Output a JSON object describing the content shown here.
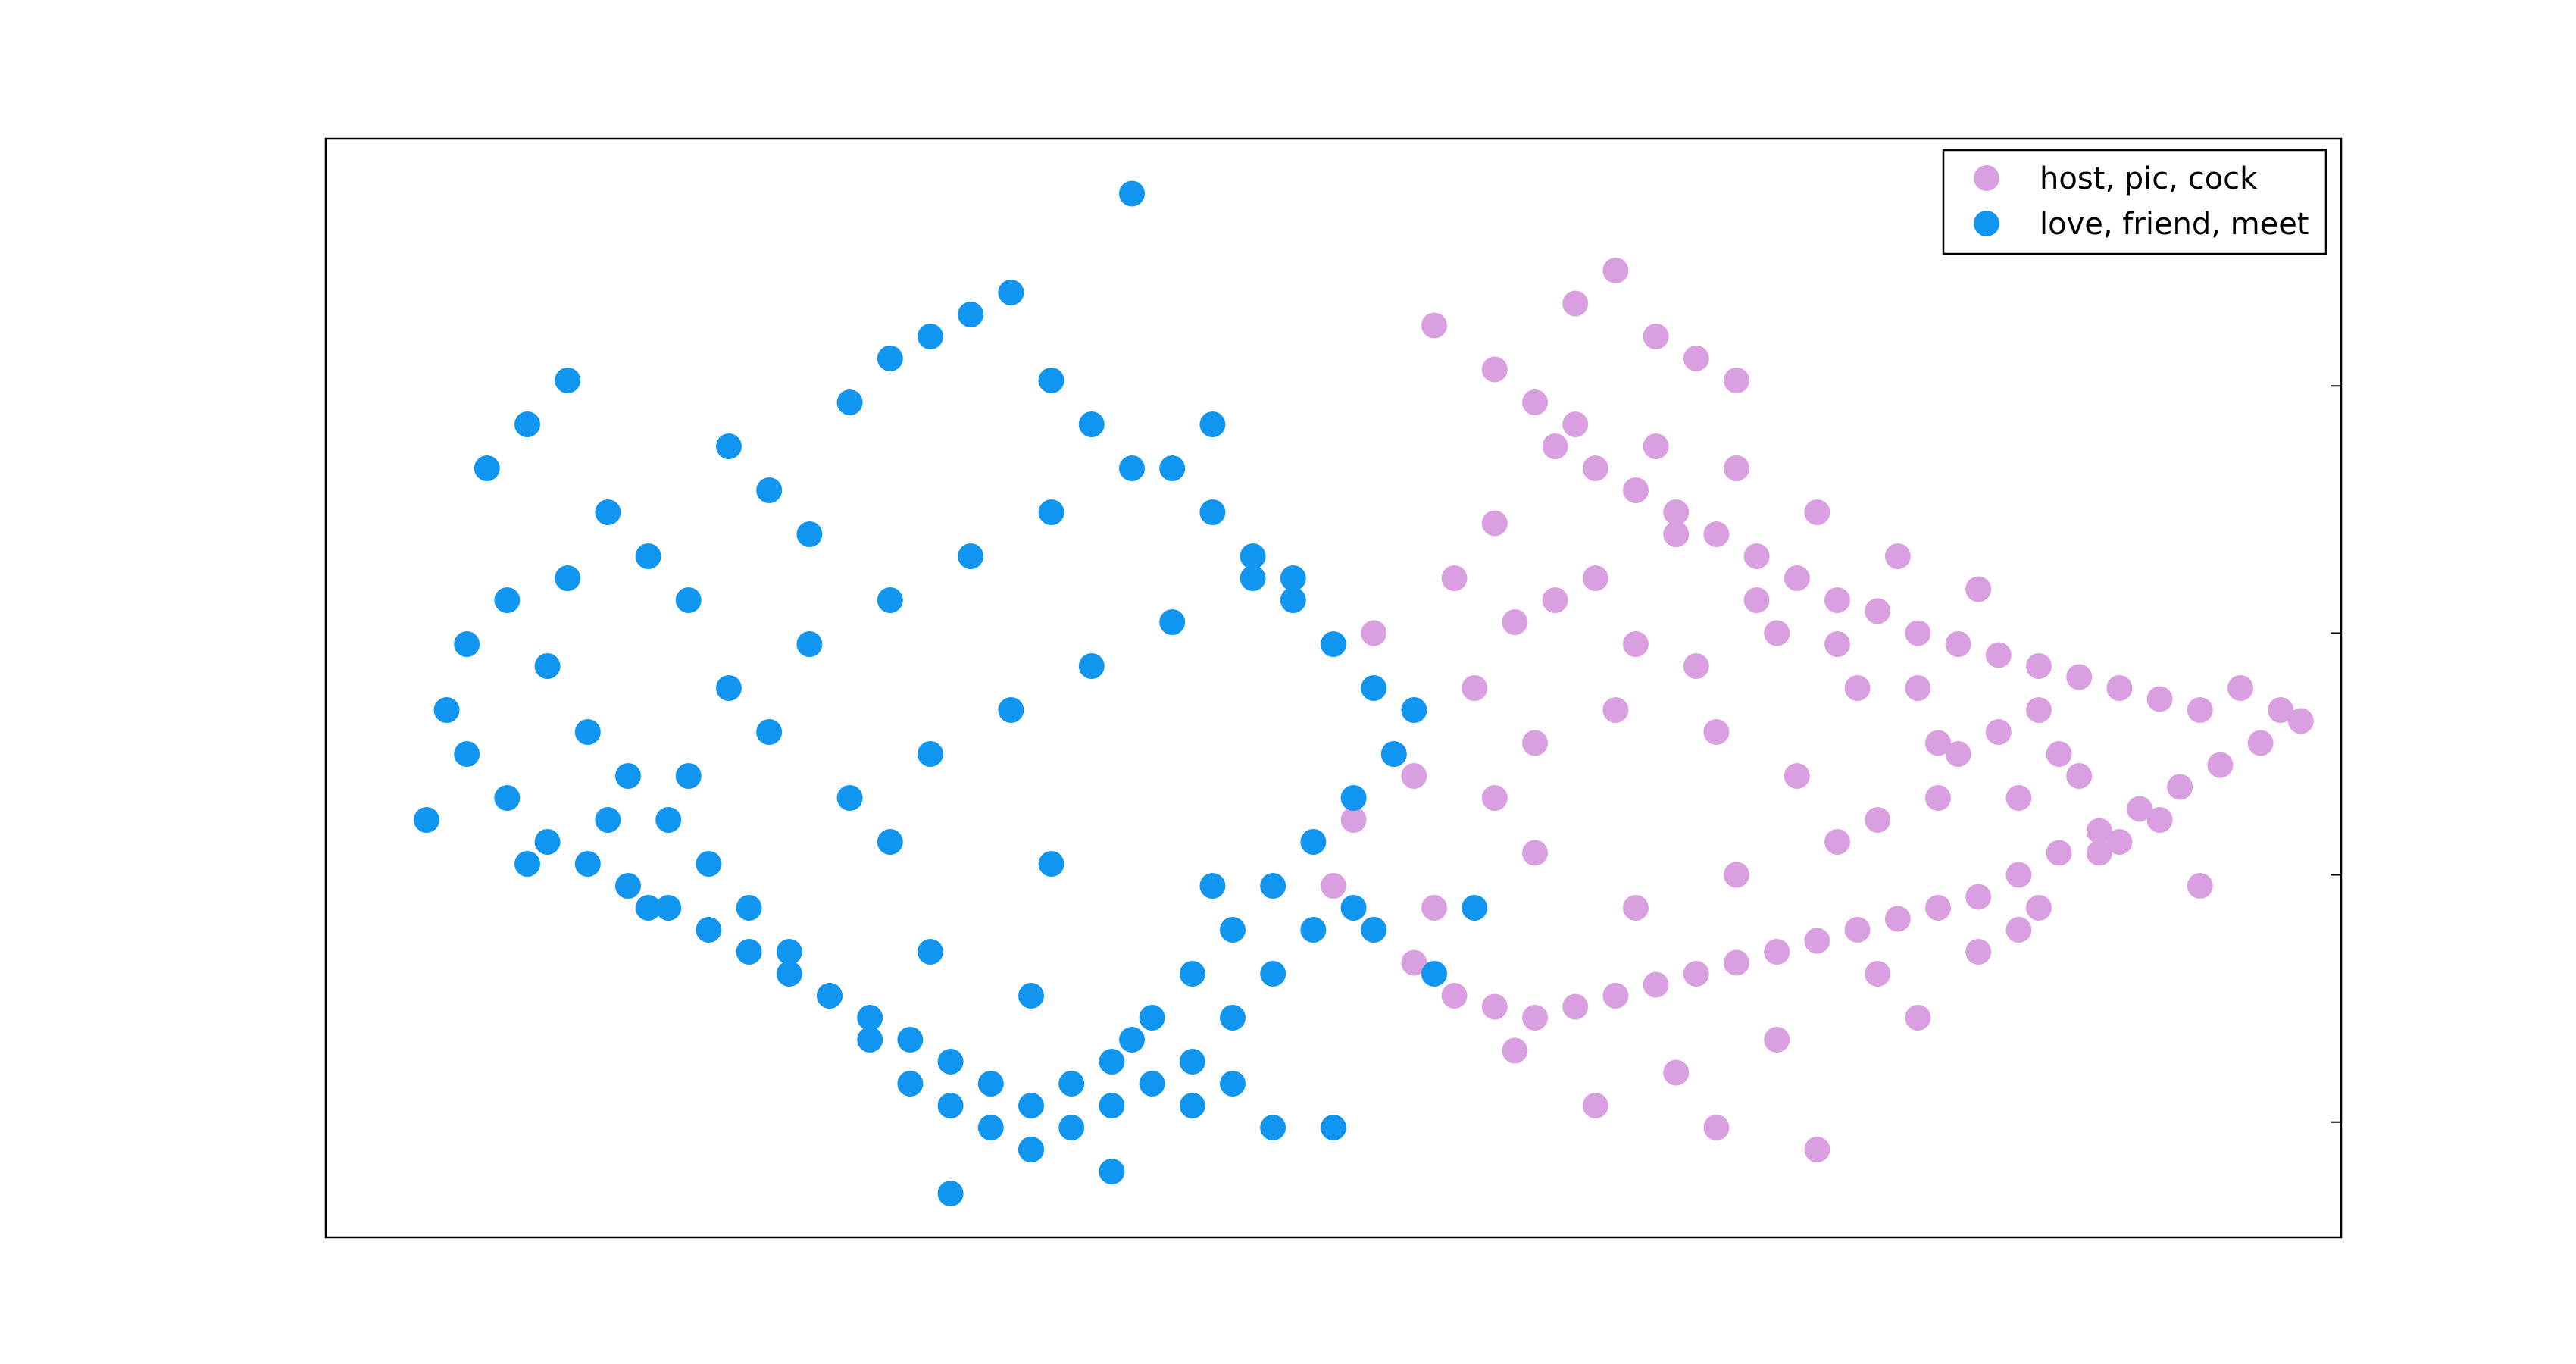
{
  "chart_data": {
    "type": "scatter",
    "title": "",
    "xlabel": "",
    "ylabel": "",
    "xlim": [
      0,
      100
    ],
    "ylim": [
      0,
      100
    ],
    "grid": false,
    "axes_visible_tick_labels": false,
    "legend": {
      "placement": "top-right",
      "entries": [
        "host, pic, cock",
        "love, friend, meet"
      ]
    },
    "series": [
      {
        "name": "host, pic, cock",
        "color": "#da9fe0",
        "x": [
          62,
          64,
          66,
          68,
          70,
          55,
          58,
          60,
          61,
          63,
          65,
          67,
          69,
          71,
          73,
          75,
          77,
          79,
          81,
          83,
          85,
          87,
          89,
          91,
          93,
          95,
          97,
          98,
          96,
          94,
          92,
          90,
          88,
          86,
          84,
          82,
          80,
          78,
          76,
          74,
          72,
          70,
          68,
          66,
          64,
          62,
          60,
          58,
          56,
          54,
          52,
          50,
          51,
          53,
          57,
          59,
          63,
          67,
          71,
          75,
          79,
          83,
          87,
          91,
          58,
          60,
          64,
          68,
          72,
          76,
          80,
          84,
          88,
          52,
          56,
          61,
          65,
          69,
          73,
          77,
          81,
          85,
          89,
          93,
          74,
          78,
          82,
          86,
          70,
          66,
          62,
          58,
          54,
          60,
          65,
          70,
          75,
          80,
          85,
          72,
          77,
          82,
          67,
          63,
          59,
          55,
          69,
          74,
          79,
          84
        ],
        "y": [
          85,
          88,
          82,
          80,
          78,
          83,
          79,
          76,
          72,
          70,
          68,
          66,
          64,
          62,
          60,
          58,
          57,
          55,
          54,
          53,
          52,
          51,
          50,
          49,
          48,
          50,
          48,
          47,
          45,
          43,
          41,
          39,
          37,
          35,
          33,
          31,
          30,
          29,
          28,
          27,
          26,
          25,
          24,
          23,
          22,
          21,
          20,
          21,
          22,
          25,
          28,
          32,
          38,
          44,
          50,
          56,
          60,
          64,
          58,
          54,
          50,
          46,
          42,
          38,
          40,
          45,
          48,
          52,
          55,
          50,
          45,
          40,
          35,
          55,
          60,
          58,
          54,
          46,
          42,
          38,
          44,
          48,
          36,
          32,
          66,
          62,
          59,
          44,
          70,
          72,
          74,
          65,
          42,
          35,
          30,
          33,
          36,
          40,
          30,
          18,
          24,
          26,
          15,
          12,
          17,
          30,
          10,
          8,
          20,
          28
        ]
      },
      {
        "name": "love, friend, meet",
        "color": "#1095f0",
        "x": [
          40,
          8,
          10,
          12,
          14,
          16,
          18,
          20,
          22,
          24,
          26,
          28,
          30,
          32,
          34,
          36,
          38,
          42,
          44,
          46,
          48,
          50,
          52,
          54,
          53,
          51,
          49,
          47,
          45,
          43,
          41,
          39,
          37,
          35,
          33,
          31,
          29,
          27,
          25,
          23,
          21,
          19,
          17,
          15,
          13,
          11,
          9,
          7,
          6,
          5,
          7,
          9,
          11,
          13,
          15,
          17,
          19,
          21,
          23,
          25,
          27,
          29,
          31,
          33,
          35,
          37,
          39,
          41,
          43,
          45,
          47,
          49,
          51,
          20,
          24,
          28,
          32,
          36,
          40,
          44,
          48,
          26,
          30,
          34,
          38,
          42,
          46,
          22,
          18,
          14,
          10,
          16,
          30,
          35,
          40,
          45,
          50,
          55,
          57,
          31,
          35,
          39,
          43,
          47,
          12,
          28,
          36,
          44,
          52
        ],
        "y": [
          95,
          70,
          74,
          78,
          66,
          62,
          58,
          72,
          68,
          64,
          76,
          80,
          82,
          84,
          86,
          78,
          74,
          70,
          66,
          62,
          58,
          54,
          50,
          48,
          44,
          40,
          36,
          32,
          28,
          24,
          20,
          16,
          14,
          12,
          14,
          16,
          18,
          20,
          22,
          24,
          26,
          28,
          30,
          32,
          34,
          36,
          40,
          44,
          48,
          38,
          54,
          58,
          52,
          46,
          42,
          38,
          34,
          30,
          26,
          22,
          18,
          14,
          12,
          10,
          8,
          10,
          12,
          14,
          16,
          20,
          24,
          28,
          30,
          50,
          54,
          58,
          62,
          66,
          70,
          74,
          60,
          40,
          44,
          48,
          52,
          56,
          60,
          46,
          42,
          38,
          34,
          30,
          26,
          22,
          18,
          14,
          10,
          24,
          30,
          4,
          8,
          6,
          12,
          10,
          60,
          36,
          34,
          32,
          28
        ]
      }
    ]
  }
}
